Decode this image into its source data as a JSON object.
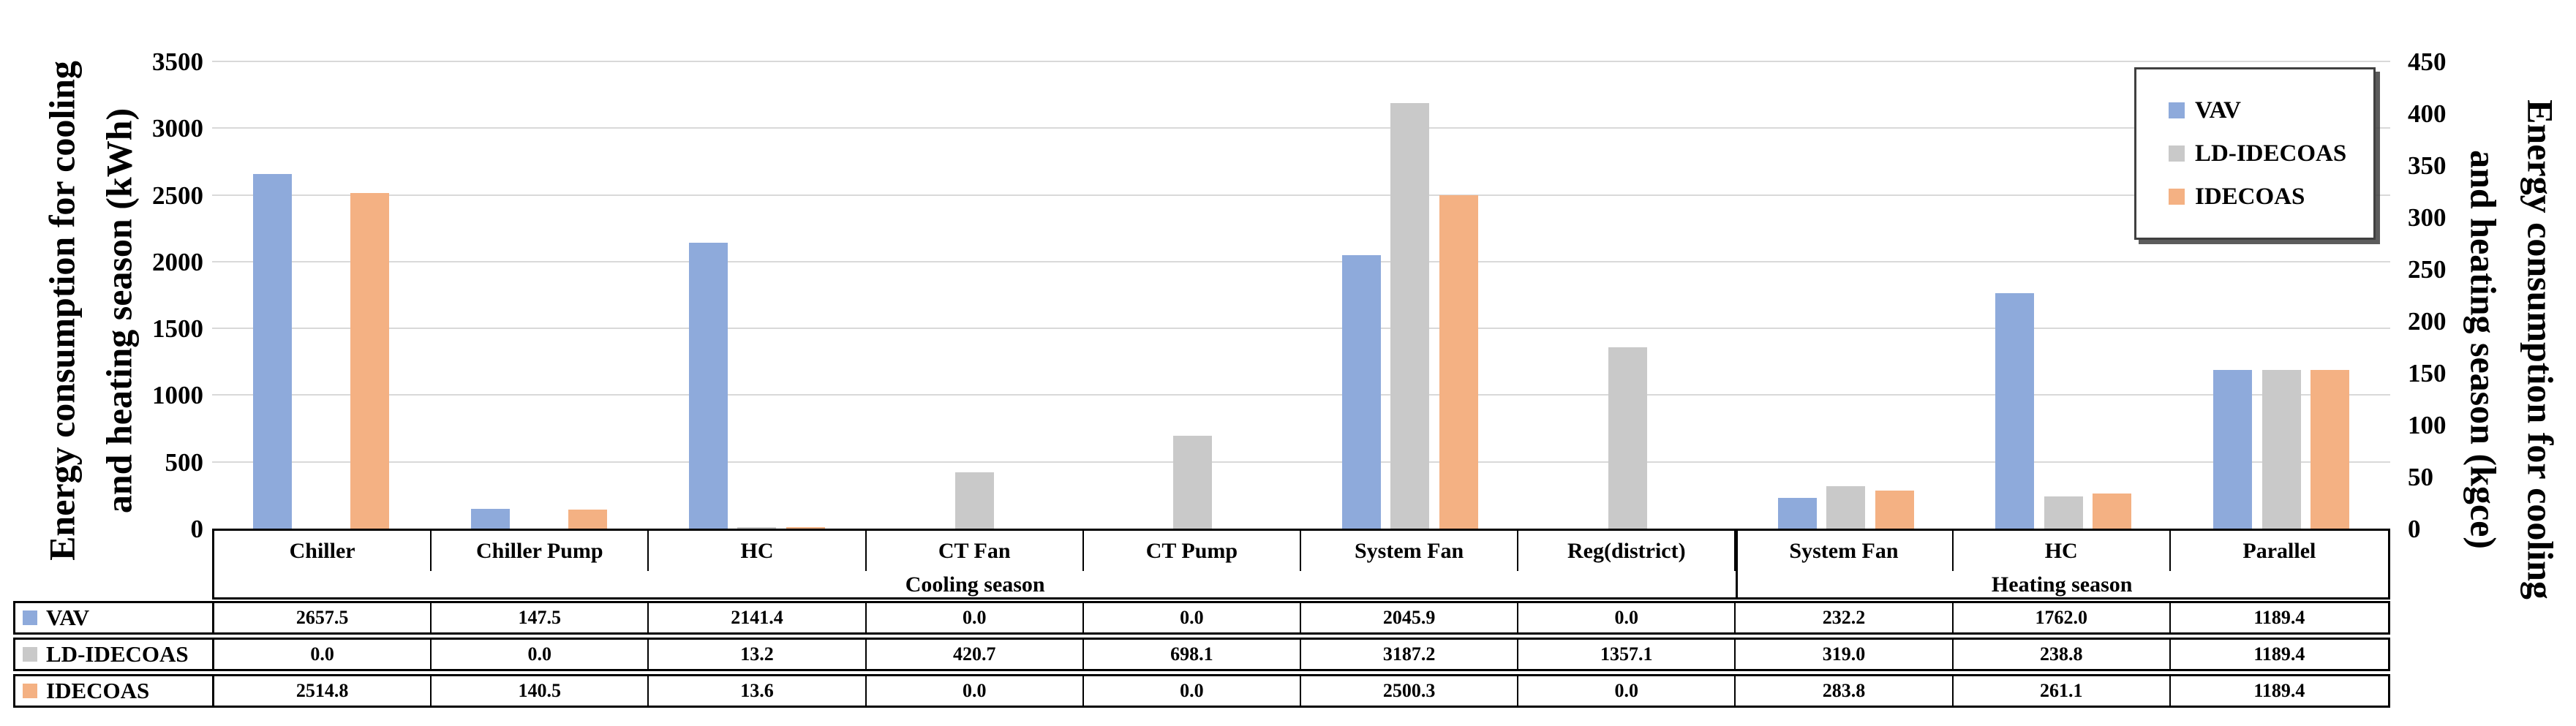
{
  "chart_data": {
    "type": "bar",
    "title": "",
    "left_axis": {
      "title_line1": "Energy consumption for cooling",
      "title_line2": "and heating season (kWh)",
      "min": 0,
      "max": 3500,
      "step": 500,
      "ticks": [
        "0",
        "500",
        "1000",
        "1500",
        "2000",
        "2500",
        "3000",
        "3500"
      ],
      "unit": "kWh"
    },
    "right_axis": {
      "title_line1": "Energy consumption for cooling",
      "title_line2": "and heating season (kgce)",
      "min": 0,
      "max": 450,
      "step": 50,
      "ticks": [
        "0",
        "50",
        "100",
        "150",
        "200",
        "250",
        "300",
        "350",
        "400",
        "450"
      ],
      "unit": "kgce"
    },
    "grid": true,
    "gridline_color": "#D9D9D9",
    "legend_position": "top-right",
    "legend": [
      "VAV",
      "LD-IDECOAS",
      "IDECOAS"
    ],
    "categories": [
      "Chiller",
      "Chiller Pump",
      "HC",
      "CT Fan",
      "CT Pump",
      "System Fan",
      "Reg(district)",
      "System Fan",
      "HC",
      "Parallel"
    ],
    "season_groups": [
      {
        "label": "Cooling season",
        "span": 7
      },
      {
        "label": "Heating season",
        "span": 3
      }
    ],
    "series": [
      {
        "name": "VAV",
        "color": "#8EAADB",
        "values": [
          2657.5,
          147.5,
          2141.4,
          0.0,
          0.0,
          2045.9,
          0.0,
          232.2,
          1762.0,
          1189.4
        ]
      },
      {
        "name": "LD-IDECOAS",
        "color": "#C9C9C9",
        "values": [
          0.0,
          0.0,
          13.2,
          420.7,
          698.1,
          3187.2,
          1357.1,
          319.0,
          238.8,
          1189.4
        ]
      },
      {
        "name": "IDECOAS",
        "color": "#F4B183",
        "values": [
          2514.8,
          140.5,
          13.6,
          0.0,
          0.0,
          2500.3,
          0.0,
          283.8,
          261.1,
          1189.4
        ]
      }
    ],
    "value_format_decimals": 1
  }
}
